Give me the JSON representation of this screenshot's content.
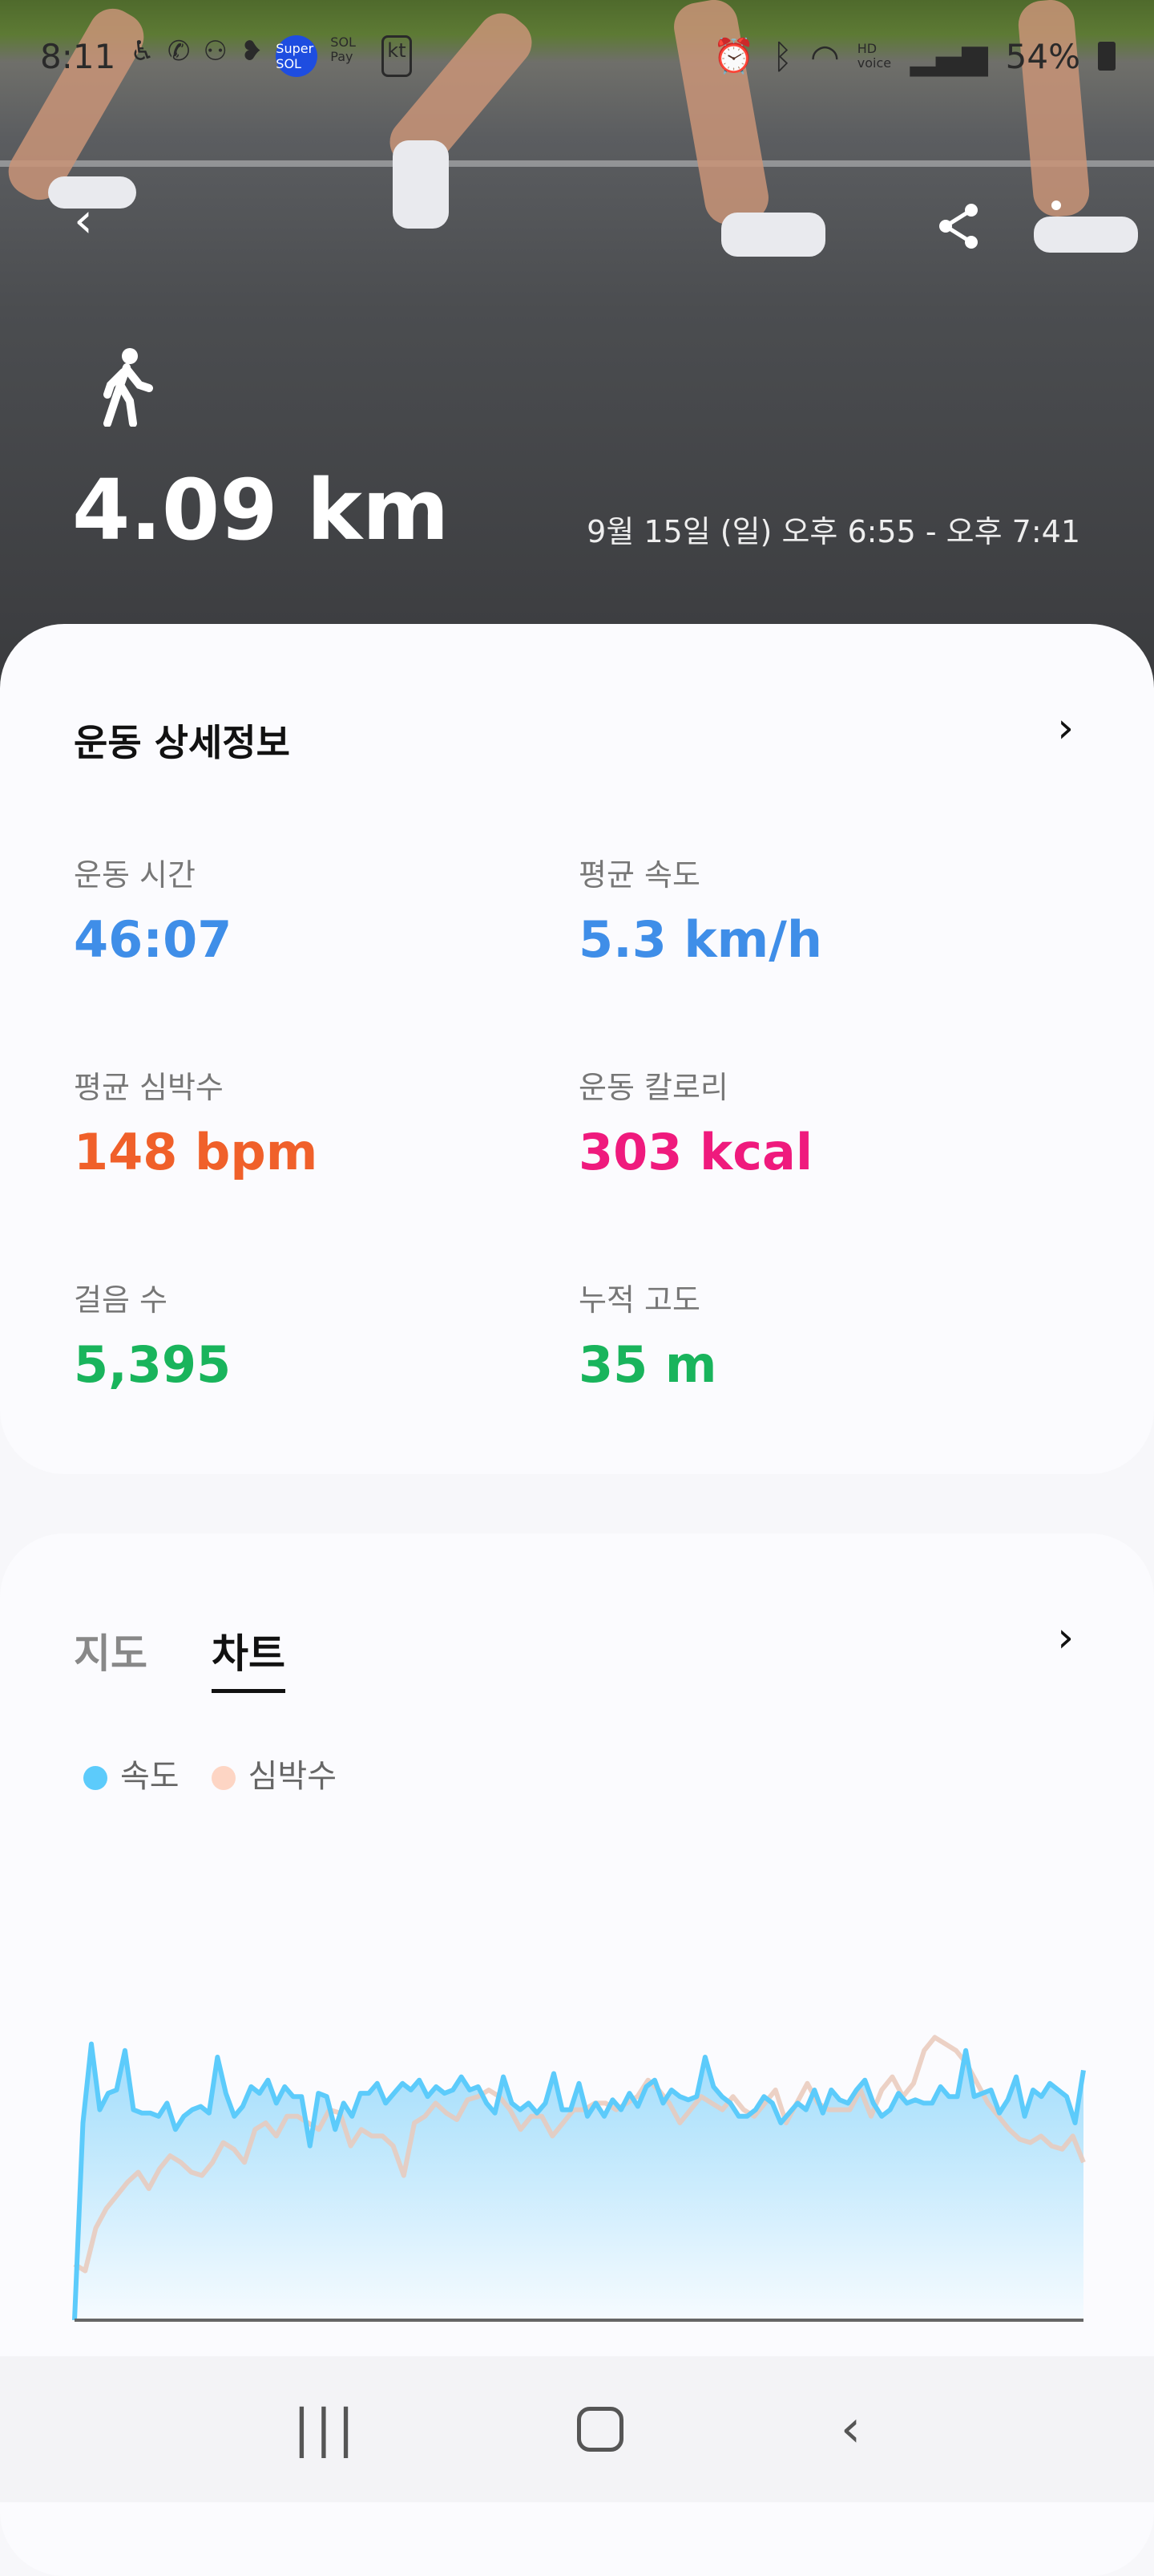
{
  "status_bar": {
    "time": "8:11",
    "battery": "54%",
    "icons": [
      "accessibility-icon",
      "missed-call-icon",
      "voicemail-icon",
      "chat-icon",
      "super-sol-icon",
      "sol-pay-icon",
      "kt-icon",
      "alarm-icon",
      "bluetooth-icon",
      "wifi-icon",
      "hd-voice-icon",
      "signal-icon",
      "battery-icon"
    ],
    "super_sol": "Super SOL",
    "sol_pay": "SOL Pay",
    "kt": "kt",
    "hd_voice": "HD voice"
  },
  "header": {
    "activity_icon": "walking-icon",
    "distance": "4.09 km",
    "date_range": "9월 15일 (일) 오후 6:55 - 오후 7:41"
  },
  "details": {
    "title": "운동 상세정보",
    "stats": [
      {
        "label": "운동 시간",
        "value": "46:07",
        "color": "#3f8ee8"
      },
      {
        "label": "평균 속도",
        "value": "5.3 km/h",
        "color": "#3f8ee8"
      },
      {
        "label": "평균 심박수",
        "value": "148 bpm",
        "color": "#f0602a"
      },
      {
        "label": "운동 칼로리",
        "value": "303 kcal",
        "color": "#ef1a7d"
      },
      {
        "label": "걸음 수",
        "value": "5,395",
        "color": "#19b45c"
      },
      {
        "label": "누적 고도",
        "value": "35 m",
        "color": "#19b45c"
      }
    ]
  },
  "chart_section": {
    "tabs": [
      {
        "label": "지도",
        "active": false
      },
      {
        "label": "차트",
        "active": true
      }
    ],
    "legend": [
      {
        "label": "속도",
        "color": "#5ccbfb"
      },
      {
        "label": "심박수",
        "color": "#fdd5c4"
      }
    ]
  },
  "chart_data": {
    "type": "area",
    "title": "",
    "xlabel": "",
    "ylabel": "",
    "grid": false,
    "series": [
      {
        "name": "속도",
        "color": "#5ccbfb",
        "values": [
          0,
          60,
          84,
          64,
          69,
          70,
          82,
          64,
          63,
          63,
          62,
          66,
          58,
          62,
          64,
          65,
          63,
          80,
          69,
          62,
          65,
          71,
          69,
          73,
          66,
          71,
          68,
          68,
          53,
          69,
          68,
          58,
          66,
          62,
          69,
          69,
          72,
          66,
          69,
          72,
          70,
          73,
          68,
          71,
          69,
          70,
          74,
          70,
          71,
          66,
          63,
          74,
          66,
          64,
          66,
          63,
          66,
          75,
          64,
          64,
          72,
          62,
          66,
          62,
          67,
          64,
          69,
          65,
          71,
          73,
          66,
          70,
          68,
          67,
          68,
          80,
          71,
          68,
          66,
          62,
          62,
          64,
          68,
          66,
          60,
          63,
          66,
          64,
          70,
          63,
          70,
          67,
          66,
          70,
          73,
          66,
          62,
          64,
          69,
          66,
          67,
          66,
          66,
          71,
          68,
          68,
          82,
          68,
          69,
          70,
          63,
          67,
          74,
          62,
          70,
          68,
          72,
          70,
          68,
          60,
          76
        ]
      },
      {
        "name": "심박수",
        "color": "#fdd5c4",
        "values": [
          17,
          15,
          28,
          34,
          38,
          42,
          45,
          40,
          46,
          50,
          48,
          45,
          44,
          48,
          54,
          52,
          48,
          58,
          60,
          56,
          62,
          62,
          60,
          58,
          64,
          63,
          53,
          58,
          56,
          56,
          53,
          44,
          60,
          62,
          66,
          63,
          61,
          67,
          68,
          70,
          68,
          64,
          58,
          62,
          62,
          56,
          60,
          64,
          64,
          66,
          66,
          64,
          66,
          68,
          73,
          70,
          66,
          60,
          64,
          68,
          66,
          64,
          68,
          64,
          62,
          66,
          70,
          60,
          66,
          72,
          66,
          64,
          64,
          64,
          70,
          62,
          70,
          74,
          68,
          72,
          82,
          86,
          84,
          82,
          78,
          72,
          66,
          62,
          58,
          55,
          54,
          56,
          53,
          52,
          56,
          48
        ]
      }
    ]
  },
  "nav": {
    "recent": "recent-apps-icon",
    "home": "home-icon",
    "back": "back-icon"
  }
}
